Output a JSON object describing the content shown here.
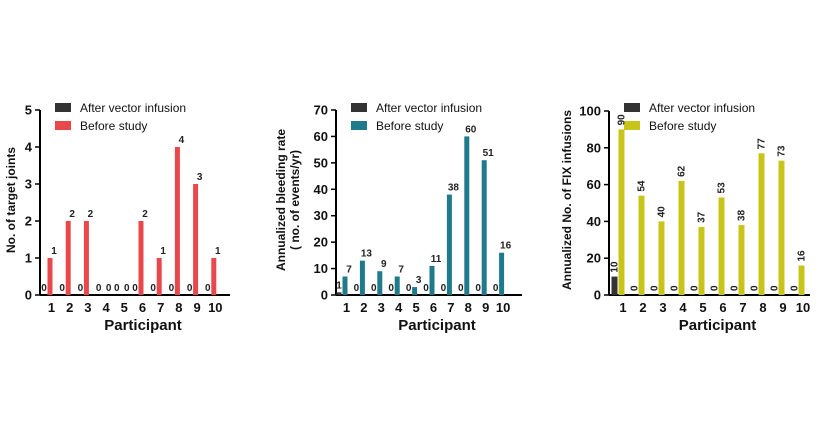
{
  "chart_data": [
    {
      "type": "bar",
      "categories": [
        "1",
        "2",
        "3",
        "4",
        "5",
        "6",
        "7",
        "8",
        "9",
        "10"
      ],
      "xlabel": "Participant",
      "ylabel_lines": [
        "No. of target joints"
      ],
      "ylim": [
        0,
        5
      ],
      "yticks": [
        "0",
        "1",
        "2",
        "3",
        "4",
        "5"
      ],
      "legend": [
        "After vector infusion",
        "Before study"
      ],
      "colors": {
        "after": "#333333",
        "before": "#e8484b"
      },
      "series": [
        {
          "name": "After vector infusion",
          "values": [
            0,
            0,
            0,
            0,
            0,
            0,
            0,
            0,
            0,
            0
          ],
          "labels": [
            "0",
            "0",
            "0",
            "0",
            "0",
            "0",
            "0",
            "0",
            "0",
            "0"
          ]
        },
        {
          "name": "Before study",
          "values": [
            1,
            2,
            2,
            0,
            0,
            2,
            1,
            4,
            3,
            1
          ],
          "labels": [
            "1",
            "2",
            "2",
            "0",
            "0",
            "2",
            "1",
            "4",
            "3",
            "1"
          ]
        }
      ]
    },
    {
      "type": "bar",
      "categories": [
        "1",
        "2",
        "3",
        "4",
        "5",
        "6",
        "7",
        "8",
        "9",
        "10"
      ],
      "xlabel": "Participant",
      "ylabel_lines": [
        "Annualized bleeding rate",
        "( no. of events/yr)"
      ],
      "ylim": [
        0,
        70
      ],
      "yticks": [
        "0",
        "10",
        "20",
        "30",
        "40",
        "50",
        "60",
        "70"
      ],
      "legend": [
        "After vector infusion",
        "Before study"
      ],
      "colors": {
        "after": "#333333",
        "before": "#1f7a8c"
      },
      "series": [
        {
          "name": "After vector infusion",
          "values": [
            1,
            0,
            0,
            0,
            0,
            0,
            0,
            0,
            0,
            0
          ],
          "labels": [
            "1",
            "0",
            "0",
            "0",
            "0",
            "0",
            "0",
            "0",
            "0",
            "0"
          ]
        },
        {
          "name": "Before study",
          "values": [
            7,
            13,
            9,
            7,
            3,
            11,
            38,
            60,
            51,
            16
          ],
          "labels": [
            "7",
            "13",
            "9",
            "7",
            "3",
            "11",
            "38",
            "60",
            "51",
            "16"
          ]
        }
      ]
    },
    {
      "type": "bar",
      "categories": [
        "1",
        "2",
        "3",
        "4",
        "5",
        "6",
        "7",
        "8",
        "9",
        "10"
      ],
      "xlabel": "Participant",
      "ylabel_lines": [
        "Annualized No. of FIX infusions"
      ],
      "ylim": [
        0,
        100
      ],
      "yticks": [
        "0",
        "20",
        "40",
        "60",
        "80",
        "100"
      ],
      "legend": [
        "After vector infusion",
        "Before study"
      ],
      "colors": {
        "after": "#333333",
        "before": "#c8c41a"
      },
      "series": [
        {
          "name": "After vector infusion",
          "values": [
            10,
            0,
            0,
            0,
            0,
            0,
            0,
            0,
            0,
            0
          ],
          "labels": [
            "10",
            "0",
            "0",
            "0",
            "0",
            "0",
            "0",
            "0",
            "0",
            "0"
          ]
        },
        {
          "name": "Before study",
          "values": [
            90,
            54,
            40,
            62,
            37,
            53,
            38,
            77,
            73,
            16
          ],
          "labels": [
            "90",
            "54",
            "40",
            "62",
            "37",
            "53",
            "38",
            "77",
            "73",
            "16"
          ]
        }
      ]
    }
  ]
}
